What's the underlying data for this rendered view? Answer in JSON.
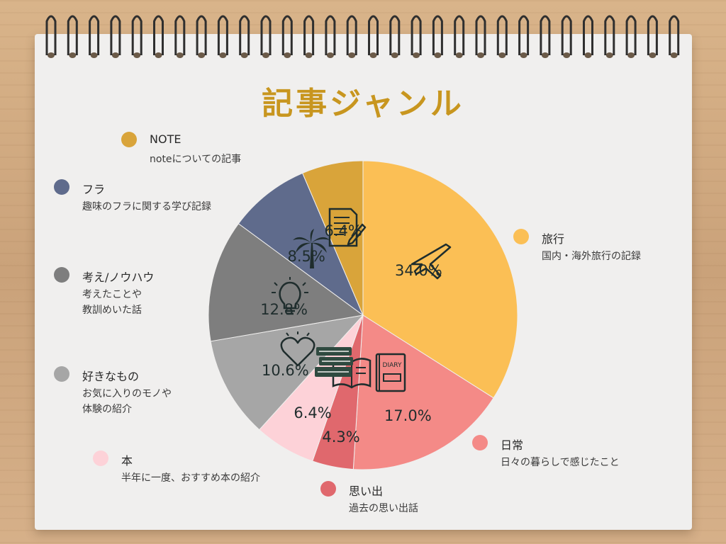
{
  "title": "記事ジャンル",
  "colors": {
    "title": "#c8961f",
    "pct_text": "#1f2d2d"
  },
  "chart_data": {
    "type": "pie",
    "title": "記事ジャンル",
    "legend_position": "left-and-right",
    "slices": [
      {
        "name": "旅行",
        "value": 34.0,
        "label": "34.0%",
        "description": "国内・海外旅行の記録",
        "color": "#fbbf55",
        "icon": "airplane-icon"
      },
      {
        "name": "日常",
        "value": 17.0,
        "label": "17.0%",
        "description": "日々の暮らしで感じたこと",
        "color": "#f48a87",
        "icon": "diary-icon"
      },
      {
        "name": "思い出",
        "value": 4.3,
        "label": "4.3%",
        "description": "過去の思い出話",
        "color": "#e0686d",
        "icon": "open-book-icon"
      },
      {
        "name": "本",
        "value": 6.4,
        "label": "6.4%",
        "description": "半年に一度、おすすめ本の紹介",
        "color": "#fdd2d8",
        "icon": "books-stack-icon"
      },
      {
        "name": "好きなもの",
        "value": 10.6,
        "label": "10.6%",
        "description": "お気に入りのモノや\n体験の紹介",
        "color": "#a6a6a6",
        "icon": "heart-icon"
      },
      {
        "name": "考え/ノウハウ",
        "value": 12.8,
        "label": "12.8%",
        "description": "考えたことや\n教訓めいた話",
        "color": "#7e7e7e",
        "icon": "lightbulb-icon"
      },
      {
        "name": "フラ",
        "value": 8.5,
        "label": "8.5%",
        "description": "趣味のフラに関する学び記録",
        "color": "#5f6b8c",
        "icon": "palm-tree-icon"
      },
      {
        "name": "NOTE",
        "value": 6.4,
        "label": "6.4%",
        "description": "noteについての記事",
        "color": "#d9a43a",
        "icon": "document-pen-icon"
      }
    ]
  }
}
